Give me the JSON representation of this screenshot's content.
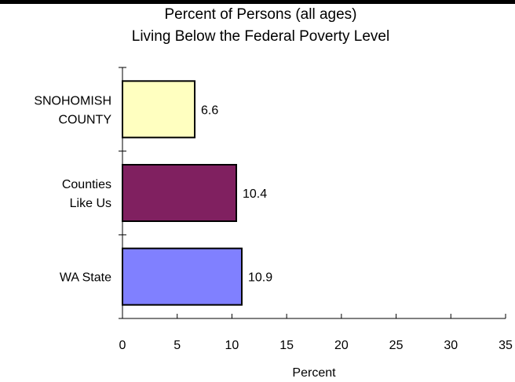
{
  "chart_data": {
    "type": "bar",
    "orientation": "horizontal",
    "title_lines": [
      "Percent of Persons (all ages)",
      "Living Below the Federal Poverty Level"
    ],
    "categories": [
      {
        "label_lines": [
          "SNOHOMISH",
          "COUNTY"
        ],
        "value": 6.6,
        "color": "#ffffc0",
        "value_label": "6.6"
      },
      {
        "label_lines": [
          "Counties",
          "Like Us"
        ],
        "value": 10.4,
        "color": "#802060",
        "value_label": "10.4"
      },
      {
        "label_lines": [
          "WA State"
        ],
        "value": 10.9,
        "color": "#8080ff",
        "value_label": "10.9"
      }
    ],
    "xlabel": "Percent",
    "xlim": [
      0,
      35
    ],
    "xticks": [
      0,
      5,
      10,
      15,
      20,
      25,
      30,
      35
    ],
    "grid": false,
    "legend": "none"
  }
}
